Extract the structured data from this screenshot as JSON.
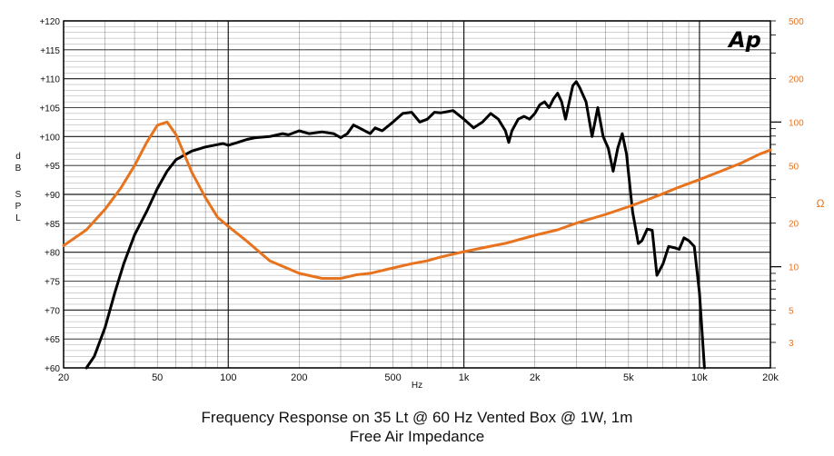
{
  "chart_data": {
    "type": "line",
    "title": "Frequency Response on 35 Lt @ 60 Hz Vented Box @ 1W, 1m",
    "subtitle": "Free Air Impedance",
    "xlabel": "Hz",
    "ylabel": "dB SPL",
    "y2label": "Ω",
    "xscale": "log",
    "xlim": [
      20,
      20000
    ],
    "ylim": [
      60,
      120
    ],
    "y2scale": "log",
    "y2lim": [
      2,
      500
    ],
    "grid": true,
    "logo": "Ap",
    "colors": {
      "spl": "#000000",
      "impedance": "#e8731e",
      "grid": "#1a1a1a"
    },
    "x_ticks": [
      "20",
      "50",
      "100",
      "200",
      "500",
      "1k",
      "2k",
      "5k",
      "10k",
      "20k"
    ],
    "x_tick_values": [
      20,
      50,
      100,
      200,
      500,
      1000,
      2000,
      5000,
      10000,
      20000
    ],
    "y_ticks": [
      "+60",
      "+65",
      "+70",
      "+75",
      "+80",
      "+85",
      "+90",
      "+95",
      "+100",
      "+105",
      "+110",
      "+115",
      "+120"
    ],
    "y_tick_values": [
      60,
      65,
      70,
      75,
      80,
      85,
      90,
      95,
      100,
      105,
      110,
      115,
      120
    ],
    "y2_ticks": [
      "3",
      "5",
      "10",
      "20",
      "50",
      "100",
      "200",
      "500"
    ],
    "y2_tick_values": [
      3,
      5,
      10,
      20,
      50,
      100,
      200,
      500
    ],
    "series": [
      {
        "name": "",
        "axis": "left",
        "points": [
          [
            25,
            60
          ],
          [
            27,
            62
          ],
          [
            30,
            67
          ],
          [
            33,
            73
          ],
          [
            36,
            78
          ],
          [
            40,
            83
          ],
          [
            45,
            87
          ],
          [
            50,
            91
          ],
          [
            55,
            94
          ],
          [
            60,
            96
          ],
          [
            70,
            97.5
          ],
          [
            80,
            98.2
          ],
          [
            90,
            98.6
          ],
          [
            95,
            98.8
          ],
          [
            100,
            98.5
          ],
          [
            110,
            99
          ],
          [
            120,
            99.5
          ],
          [
            130,
            99.8
          ],
          [
            150,
            100
          ],
          [
            170,
            100.5
          ],
          [
            180,
            100.3
          ],
          [
            200,
            101
          ],
          [
            220,
            100.5
          ],
          [
            250,
            100.8
          ],
          [
            280,
            100.5
          ],
          [
            300,
            99.8
          ],
          [
            320,
            100.5
          ],
          [
            340,
            102
          ],
          [
            360,
            101.5
          ],
          [
            400,
            100.5
          ],
          [
            420,
            101.5
          ],
          [
            450,
            101
          ],
          [
            500,
            102.5
          ],
          [
            550,
            104
          ],
          [
            600,
            104.2
          ],
          [
            650,
            102.5
          ],
          [
            700,
            103
          ],
          [
            750,
            104.2
          ],
          [
            800,
            104.1
          ],
          [
            900,
            104.5
          ],
          [
            1000,
            103
          ],
          [
            1100,
            101.5
          ],
          [
            1200,
            102.5
          ],
          [
            1300,
            104
          ],
          [
            1400,
            103
          ],
          [
            1500,
            101
          ],
          [
            1550,
            99
          ],
          [
            1600,
            101
          ],
          [
            1700,
            103
          ],
          [
            1800,
            103.5
          ],
          [
            1900,
            103
          ],
          [
            2000,
            104
          ],
          [
            2100,
            105.5
          ],
          [
            2200,
            106
          ],
          [
            2300,
            105
          ],
          [
            2400,
            106.5
          ],
          [
            2500,
            107.5
          ],
          [
            2600,
            106
          ],
          [
            2700,
            103
          ],
          [
            2800,
            106
          ],
          [
            2900,
            108.8
          ],
          [
            3000,
            109.5
          ],
          [
            3100,
            108.5
          ],
          [
            3300,
            106
          ],
          [
            3500,
            100
          ],
          [
            3700,
            105
          ],
          [
            3900,
            100
          ],
          [
            4100,
            98
          ],
          [
            4300,
            94
          ],
          [
            4500,
            98
          ],
          [
            4700,
            100.5
          ],
          [
            4900,
            97
          ],
          [
            5200,
            87
          ],
          [
            5500,
            81.5
          ],
          [
            5700,
            82
          ],
          [
            6000,
            84
          ],
          [
            6300,
            83.8
          ],
          [
            6600,
            76
          ],
          [
            7000,
            78
          ],
          [
            7400,
            81
          ],
          [
            7800,
            80.8
          ],
          [
            8200,
            80.5
          ],
          [
            8600,
            82.5
          ],
          [
            9000,
            82
          ],
          [
            9500,
            81
          ],
          [
            10000,
            73
          ],
          [
            10500,
            60
          ]
        ]
      },
      {
        "name": "",
        "axis": "right",
        "points": [
          [
            20,
            14
          ],
          [
            25,
            18
          ],
          [
            30,
            25
          ],
          [
            35,
            35
          ],
          [
            40,
            50
          ],
          [
            45,
            72
          ],
          [
            50,
            95
          ],
          [
            55,
            100
          ],
          [
            60,
            82
          ],
          [
            70,
            45
          ],
          [
            80,
            30
          ],
          [
            90,
            22
          ],
          [
            100,
            19
          ],
          [
            120,
            15
          ],
          [
            150,
            11
          ],
          [
            200,
            9
          ],
          [
            250,
            8.3
          ],
          [
            300,
            8.3
          ],
          [
            350,
            8.8
          ],
          [
            400,
            9
          ],
          [
            500,
            9.8
          ],
          [
            600,
            10.5
          ],
          [
            700,
            11
          ],
          [
            800,
            11.7
          ],
          [
            1000,
            12.7
          ],
          [
            1200,
            13.5
          ],
          [
            1500,
            14.5
          ],
          [
            2000,
            16.5
          ],
          [
            2500,
            18
          ],
          [
            3000,
            20
          ],
          [
            4000,
            23
          ],
          [
            5000,
            26
          ],
          [
            6000,
            29
          ],
          [
            7000,
            32
          ],
          [
            8000,
            35
          ],
          [
            10000,
            40
          ],
          [
            12000,
            45
          ],
          [
            15000,
            52
          ],
          [
            18000,
            60
          ],
          [
            20000,
            64
          ]
        ]
      }
    ]
  }
}
